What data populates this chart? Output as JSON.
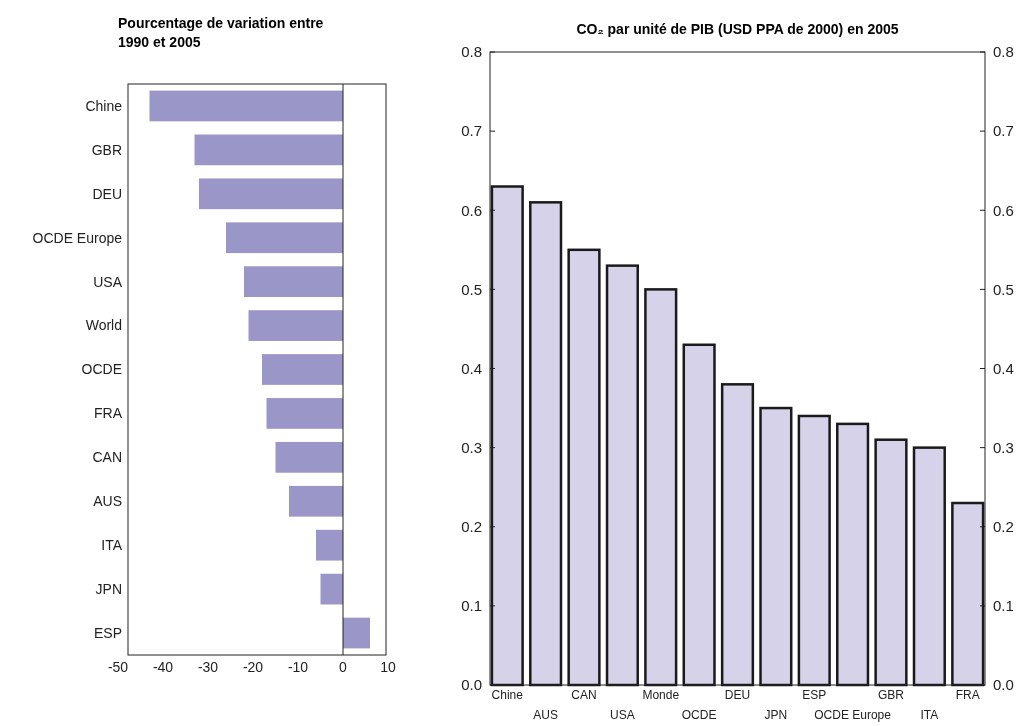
{
  "chart_data": [
    {
      "type": "bar",
      "orientation": "horizontal",
      "title": "Pourcentage de variation entre 1990 et 2005",
      "categories": [
        "Chine",
        "GBR",
        "DEU",
        "OCDE Europe",
        "USA",
        "World",
        "OCDE",
        "FRA",
        "CAN",
        "AUS",
        "ITA",
        "JPN",
        "ESP"
      ],
      "values": [
        -43,
        -33,
        -32,
        -26,
        -22,
        -21,
        -18,
        -17,
        -15,
        -12,
        -6,
        -5,
        6
      ],
      "color": "#9b96c8",
      "xlim": [
        -50,
        10
      ],
      "xticks": [
        -50,
        -40,
        -30,
        -20,
        -10,
        0,
        10
      ],
      "ref_lines": [
        {
          "axis": "x",
          "value": 0
        }
      ],
      "grid": false
    },
    {
      "type": "bar",
      "title": "CO₂ par unité de PIB (USD PPA de 2000) en 2005",
      "categories": [
        "Chine",
        "AUS",
        "CAN",
        "USA",
        "Monde",
        "OCDE",
        "DEU",
        "JPN",
        "ESP",
        "OCDE Europe",
        "GBR",
        "ITA",
        "FRA"
      ],
      "values": [
        0.63,
        0.61,
        0.55,
        0.53,
        0.5,
        0.43,
        0.38,
        0.35,
        0.34,
        0.33,
        0.31,
        0.3,
        0.23
      ],
      "color": "#d5d2ea",
      "ylim": [
        0,
        0.8
      ],
      "yticks": [
        {
          "value": 0,
          "label": "0.0"
        },
        0.1,
        0.2,
        0.3,
        0.4,
        0.5,
        0.6,
        0.7,
        0.8
      ],
      "y2lim": [
        0,
        0.8
      ],
      "y2ticks": [
        {
          "value": 0,
          "label": "0.0"
        },
        0.1,
        0.2,
        0.3,
        0.4,
        0.5,
        0.6,
        0.7,
        0.8
      ],
      "grid": false
    }
  ]
}
